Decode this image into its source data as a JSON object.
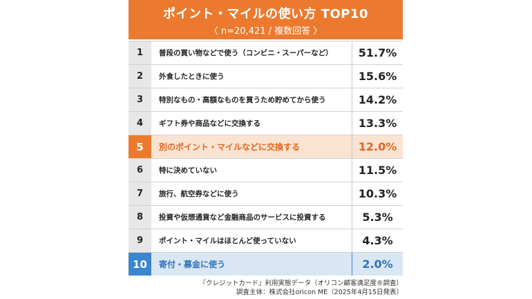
{
  "chart_data": {
    "type": "table",
    "title": "ポイント・マイルの使い方 TOP10",
    "subtitle": "〈 n=20,421 / 複数回答 〉",
    "rows": [
      {
        "rank": "1",
        "label": "普段の買い物などで使う（コンビニ・スーパーなど）",
        "value": "51.7%",
        "highlight": ""
      },
      {
        "rank": "2",
        "label": "外食したときに使う",
        "value": "15.6%",
        "highlight": ""
      },
      {
        "rank": "3",
        "label": "特別なもの・高額なものを買うため貯めてから使う",
        "value": "14.2%",
        "highlight": ""
      },
      {
        "rank": "4",
        "label": "ギフト券や商品などに交換する",
        "value": "13.3%",
        "highlight": ""
      },
      {
        "rank": "5",
        "label": "別のポイント・マイルなどに交換する",
        "value": "12.0%",
        "highlight": "orange"
      },
      {
        "rank": "6",
        "label": "特に決めていない",
        "value": "11.5%",
        "highlight": ""
      },
      {
        "rank": "7",
        "label": "旅行、航空券などに使う",
        "value": "10.3%",
        "highlight": ""
      },
      {
        "rank": "8",
        "label": "投資や仮想通貨など金融商品のサービスに投資する",
        "value": "5.3%",
        "highlight": ""
      },
      {
        "rank": "9",
        "label": "ポイント・マイルはほとんど使っていない",
        "value": "4.3%",
        "highlight": ""
      },
      {
        "rank": "10",
        "label": "寄付・募金に使う",
        "value": "2.0%",
        "highlight": "blue"
      }
    ],
    "footer_source": "『クレジットカード』利用実態データ（オリコン顧客満足度®調査）",
    "footer_org": "調査主体：株式会社oricon ME（2025年4月15日発表）"
  },
  "colors": {
    "header": "#ec7a2e",
    "highlight_orange": "#e0661f",
    "highlight_blue": "#3b86cc"
  }
}
